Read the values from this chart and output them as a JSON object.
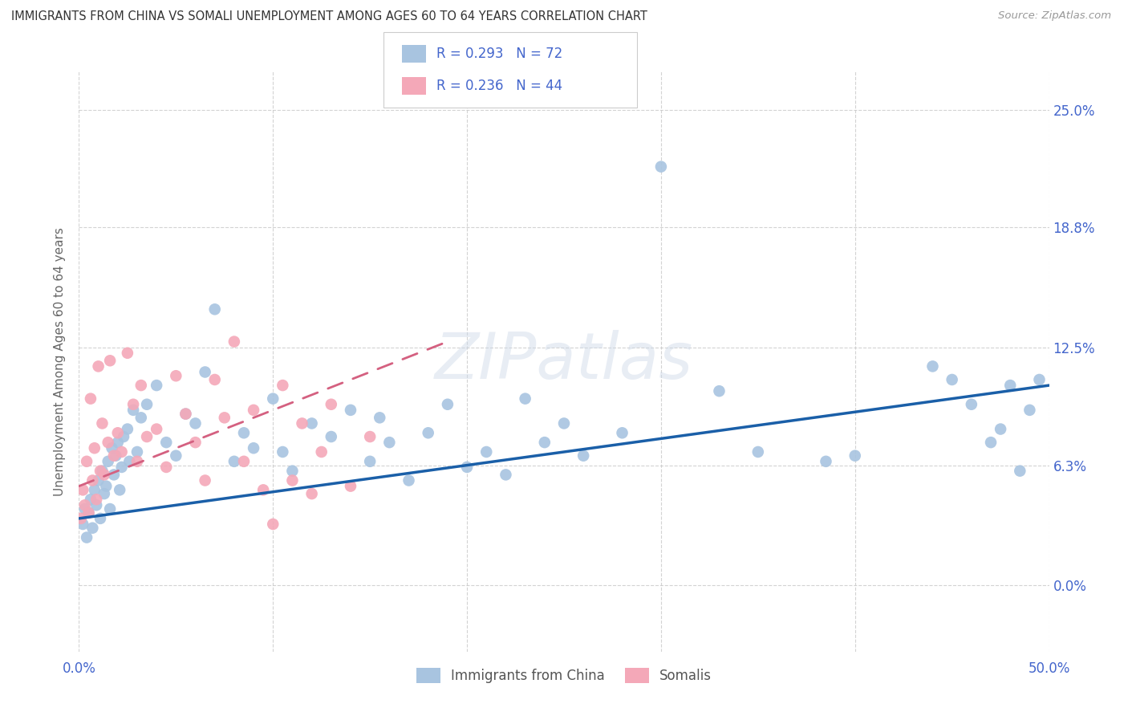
{
  "title": "IMMIGRANTS FROM CHINA VS SOMALI UNEMPLOYMENT AMONG AGES 60 TO 64 YEARS CORRELATION CHART",
  "source": "Source: ZipAtlas.com",
  "ylabel": "Unemployment Among Ages 60 to 64 years",
  "ytick_labels": [
    "0.0%",
    "6.3%",
    "12.5%",
    "18.8%",
    "25.0%"
  ],
  "ytick_values": [
    0.0,
    6.3,
    12.5,
    18.8,
    25.0
  ],
  "xlim": [
    0.0,
    50.0
  ],
  "ylim": [
    -3.5,
    27.0
  ],
  "legend_r1": "R = 0.293",
  "legend_n1": "N = 72",
  "legend_r2": "R = 0.236",
  "legend_n2": "N = 44",
  "legend_label1": "Immigrants from China",
  "legend_label2": "Somalis",
  "china_color": "#a8c4e0",
  "somali_color": "#f4a8b8",
  "china_line_color": "#1a5fa8",
  "somali_line_color": "#d46080",
  "background_color": "#ffffff",
  "grid_color": "#c8c8c8",
  "axis_label_color": "#4466cc",
  "china_x": [
    0.2,
    0.3,
    0.4,
    0.5,
    0.6,
    0.7,
    0.8,
    0.9,
    1.0,
    1.1,
    1.2,
    1.3,
    1.4,
    1.5,
    1.6,
    1.7,
    1.8,
    1.9,
    2.0,
    2.1,
    2.2,
    2.3,
    2.5,
    2.6,
    2.8,
    3.0,
    3.2,
    3.5,
    4.0,
    4.5,
    5.0,
    5.5,
    6.0,
    6.5,
    7.0,
    8.0,
    8.5,
    9.0,
    10.0,
    10.5,
    11.0,
    12.0,
    13.0,
    14.0,
    15.0,
    15.5,
    16.0,
    17.0,
    18.0,
    19.0,
    20.0,
    21.0,
    22.0,
    23.0,
    24.0,
    25.0,
    26.0,
    28.0,
    30.0,
    33.0,
    35.0,
    38.5,
    40.0,
    44.0,
    45.0,
    46.0,
    47.0,
    47.5,
    48.0,
    48.5,
    49.0,
    49.5
  ],
  "china_y": [
    3.2,
    4.0,
    2.5,
    3.8,
    4.5,
    3.0,
    5.0,
    4.2,
    5.5,
    3.5,
    6.0,
    4.8,
    5.2,
    6.5,
    4.0,
    7.2,
    5.8,
    6.8,
    7.5,
    5.0,
    6.2,
    7.8,
    8.2,
    6.5,
    9.2,
    7.0,
    8.8,
    9.5,
    10.5,
    7.5,
    6.8,
    9.0,
    8.5,
    11.2,
    14.5,
    6.5,
    8.0,
    7.2,
    9.8,
    7.0,
    6.0,
    8.5,
    7.8,
    9.2,
    6.5,
    8.8,
    7.5,
    5.5,
    8.0,
    9.5,
    6.2,
    7.0,
    5.8,
    9.8,
    7.5,
    8.5,
    6.8,
    8.0,
    22.0,
    10.2,
    7.0,
    6.5,
    6.8,
    11.5,
    10.8,
    9.5,
    7.5,
    8.2,
    10.5,
    6.0,
    9.2,
    10.8
  ],
  "somali_x": [
    0.1,
    0.2,
    0.3,
    0.4,
    0.5,
    0.6,
    0.7,
    0.8,
    0.9,
    1.0,
    1.1,
    1.2,
    1.3,
    1.5,
    1.6,
    1.8,
    2.0,
    2.2,
    2.5,
    2.8,
    3.0,
    3.2,
    3.5,
    4.0,
    4.5,
    5.0,
    5.5,
    6.0,
    6.5,
    7.0,
    7.5,
    8.0,
    8.5,
    9.0,
    9.5,
    10.0,
    10.5,
    11.0,
    11.5,
    12.0,
    12.5,
    13.0,
    14.0,
    15.0
  ],
  "somali_y": [
    3.5,
    5.0,
    4.2,
    6.5,
    3.8,
    9.8,
    5.5,
    7.2,
    4.5,
    11.5,
    6.0,
    8.5,
    5.8,
    7.5,
    11.8,
    6.8,
    8.0,
    7.0,
    12.2,
    9.5,
    6.5,
    10.5,
    7.8,
    8.2,
    6.2,
    11.0,
    9.0,
    7.5,
    5.5,
    10.8,
    8.8,
    12.8,
    6.5,
    9.2,
    5.0,
    3.2,
    10.5,
    5.5,
    8.5,
    4.8,
    7.0,
    9.5,
    5.2,
    7.8
  ],
  "china_trendline_x": [
    0.0,
    50.0
  ],
  "china_trendline_y": [
    3.5,
    10.5
  ],
  "somali_trendline_x": [
    0.0,
    19.0
  ],
  "somali_trendline_y": [
    5.2,
    12.8
  ]
}
